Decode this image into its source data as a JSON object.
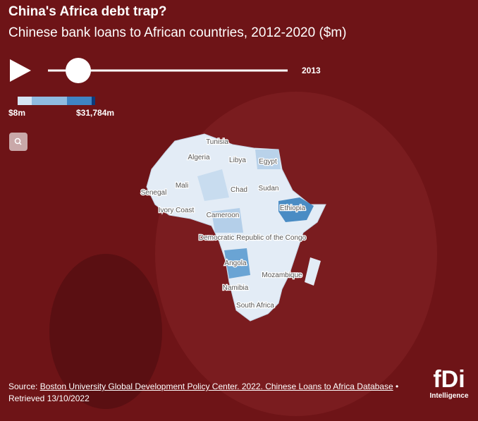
{
  "header": {
    "title": "China's Africa debt trap?",
    "subtitle": "Chinese bank loans to African countries, 2012-2020 ($m)"
  },
  "controls": {
    "year": "2013"
  },
  "legend": {
    "min_label": "$8m",
    "max_label": "$31,784m"
  },
  "map": {
    "labels": [
      "Tunisia",
      "Algeria",
      "Libya",
      "Egypt",
      "Mali",
      "Senegal",
      "Chad",
      "Sudan",
      "Ivory Coast",
      "Cameroon",
      "Ethiopia",
      "Democratic Republic of the Congo",
      "Angola",
      "Mozambique",
      "Namibia",
      "South Africa"
    ]
  },
  "footer": {
    "source_prefix": "Source:",
    "source_link": "Boston University Global Development Policy Center. 2022. Chinese Loans to Africa Database",
    "separator": "•",
    "retrieved": "Retrieved 13/10/2022"
  },
  "logo": {
    "brand": "fDi",
    "tagline": "Intelligence"
  }
}
